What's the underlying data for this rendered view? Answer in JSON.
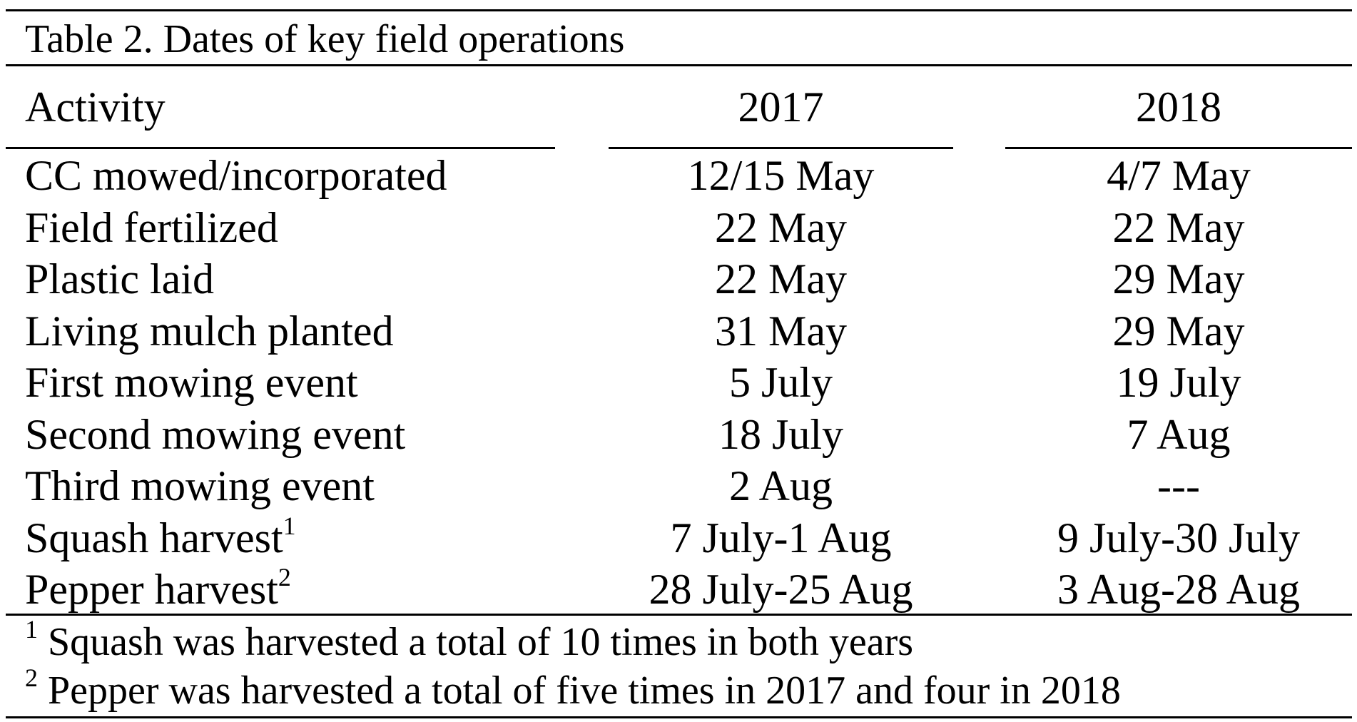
{
  "table": {
    "title": "Table 2. Dates of key field operations",
    "columns": [
      "Activity",
      "2017",
      "2018"
    ],
    "rows": [
      {
        "activity": "CC mowed/incorporated",
        "sup": "",
        "y2017": "12/15 May",
        "y2018": "4/7 May"
      },
      {
        "activity": "Field fertilized",
        "sup": "",
        "y2017": "22 May",
        "y2018": "22 May"
      },
      {
        "activity": "Plastic laid",
        "sup": "",
        "y2017": "22 May",
        "y2018": "29 May"
      },
      {
        "activity": "Living mulch planted",
        "sup": "",
        "y2017": "31 May",
        "y2018": "29 May"
      },
      {
        "activity": "First mowing event",
        "sup": "",
        "y2017": "5 July",
        "y2018": "19 July"
      },
      {
        "activity": "Second mowing event",
        "sup": "",
        "y2017": "18 July",
        "y2018": "7 Aug"
      },
      {
        "activity": "Third mowing event",
        "sup": "",
        "y2017": "2 Aug",
        "y2018": "---"
      },
      {
        "activity": "Squash harvest",
        "sup": "1",
        "y2017": "7 July-1 Aug",
        "y2018": "9 July-30 July"
      },
      {
        "activity": "Pepper harvest",
        "sup": "2",
        "y2017": "28 July-25 Aug",
        "y2018": "3 Aug-28 Aug"
      }
    ],
    "footnotes": [
      {
        "marker": "1",
        "text": " Squash was harvested a total of 10 times in both years"
      },
      {
        "marker": "2",
        "text": " Pepper was harvested a total of five times in 2017 and four in 2018"
      }
    ]
  }
}
